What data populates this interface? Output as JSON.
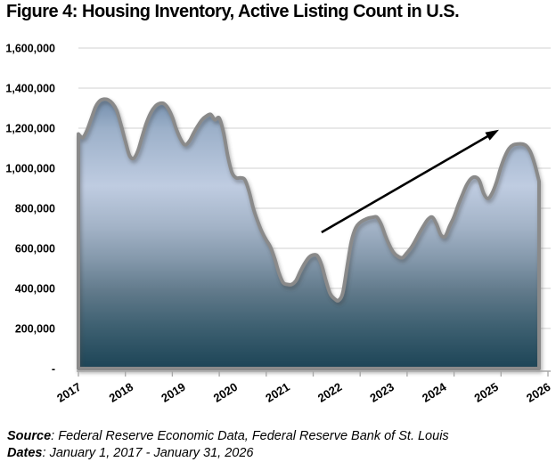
{
  "title": "Figure 4: Housing Inventory, Active Listing Count in U.S.",
  "footer": {
    "source_label": "Source",
    "source_sep": ": ",
    "source_text": "Federal Reserve Economic Data, Federal Reserve Bank of St. Louis",
    "dates_label": "Dates",
    "dates_sep": ": ",
    "dates_text": "January 1, 2017 - January 31, 2026"
  },
  "chart_data": {
    "type": "area",
    "title": "Figure 4: Housing Inventory, Active Listing Count in U.S.",
    "series_name": "Active Listing Count in U.S.",
    "x_start": "2017-01",
    "x_end": "2026-01",
    "x_tick_labels": [
      "2017",
      "2018",
      "2019",
      "2020",
      "2021",
      "2022",
      "2023",
      "2024",
      "2025",
      "2026"
    ],
    "y_tick_labels": [
      "1,600,000",
      "1,400,000",
      "1,200,000",
      "1,000,000",
      "800,000",
      "600,000",
      "400,000",
      "200,000",
      "-"
    ],
    "y_tick_values": [
      1600000,
      1400000,
      1200000,
      1000000,
      800000,
      600000,
      400000,
      200000,
      0
    ],
    "ylim": [
      0,
      1600000
    ],
    "grid": true,
    "legend": "none",
    "monthly_values": [
      1171000,
      1153000,
      1189000,
      1247000,
      1305000,
      1336000,
      1345000,
      1341000,
      1323000,
      1287000,
      1215000,
      1135000,
      1063000,
      1050000,
      1090000,
      1162000,
      1229000,
      1278000,
      1309000,
      1323000,
      1323000,
      1300000,
      1256000,
      1193000,
      1144000,
      1117000,
      1135000,
      1175000,
      1211000,
      1242000,
      1260000,
      1269000,
      1242000,
      1251000,
      1180000,
      1064000,
      979000,
      952000,
      952000,
      943000,
      885000,
      800000,
      737000,
      684000,
      643000,
      608000,
      550000,
      478000,
      429000,
      420000,
      420000,
      438000,
      483000,
      523000,
      554000,
      567000,
      563000,
      518000,
      442000,
      375000,
      349000,
      340000,
      380000,
      510000,
      635000,
      702000,
      728000,
      742000,
      751000,
      755000,
      755000,
      719000,
      661000,
      612000,
      577000,
      559000,
      554000,
      577000,
      603000,
      639000,
      679000,
      715000,
      746000,
      755000,
      719000,
      666000,
      661000,
      710000,
      755000,
      813000,
      866000,
      915000,
      947000,
      956000,
      938000,
      875000,
      849000,
      875000,
      929000,
      1001000,
      1059000,
      1099000,
      1117000,
      1121000,
      1121000,
      1112000,
      1081000,
      1019000,
      935000
    ],
    "annotation_arrow": {
      "from": {
        "month_index": 57,
        "value": 680000
      },
      "to": {
        "month_index": 98.6,
        "value": 1192000
      },
      "color": "#000000"
    },
    "colors": {
      "line_stroke": "#8a8a8a",
      "gridline": "#d9d9d9",
      "axis": "#a6a6a6",
      "text": "#000000",
      "fill_gradient_stops": [
        {
          "offset": 0.0,
          "color": "#6f8aa8"
        },
        {
          "offset": 0.12,
          "color": "#9cb0c9"
        },
        {
          "offset": 0.33,
          "color": "#bfcce1"
        },
        {
          "offset": 0.48,
          "color": "#a3b3c7"
        },
        {
          "offset": 0.6,
          "color": "#8498ab"
        },
        {
          "offset": 0.72,
          "color": "#60798a"
        },
        {
          "offset": 0.84,
          "color": "#3f6172"
        },
        {
          "offset": 1.0,
          "color": "#1c4456"
        }
      ]
    }
  }
}
